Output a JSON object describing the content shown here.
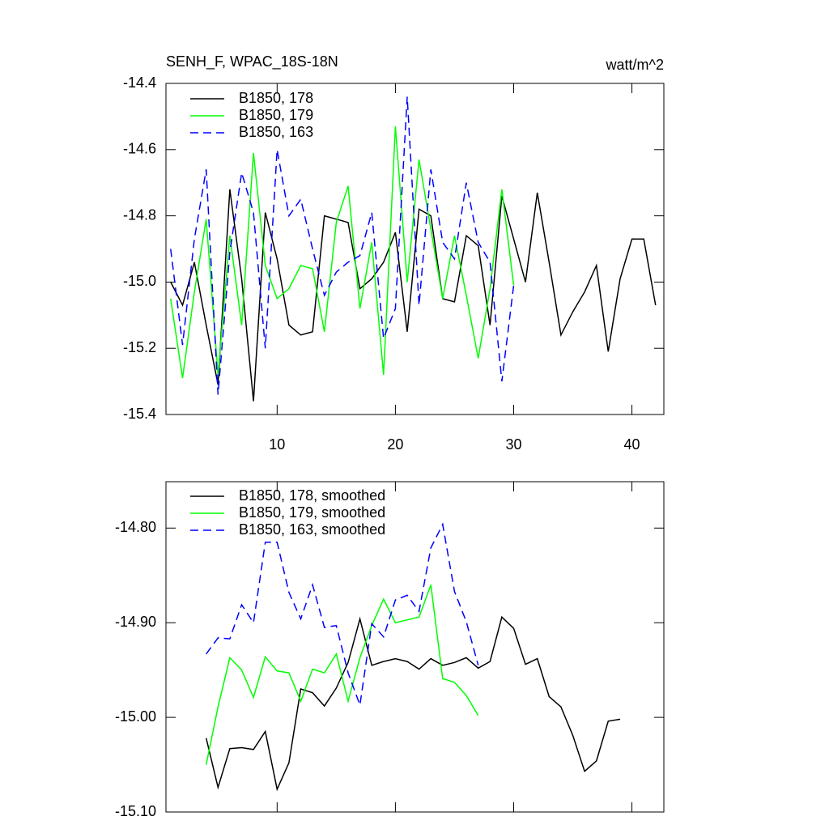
{
  "chart_data": [
    {
      "type": "line",
      "title": "SENH_F, WPAC_18S-18N",
      "units": "watt/m^2",
      "xlim": [
        0.6,
        42.7
      ],
      "xticks": [
        10,
        20,
        30,
        40
      ],
      "xtick_labels": true,
      "ylim": [
        -15.4,
        -14.4
      ],
      "yticks": [
        {
          "value": -14.4,
          "label": "-14.4"
        },
        {
          "value": -14.6,
          "label": "-14.6"
        },
        {
          "value": -14.8,
          "label": "-14.8"
        },
        {
          "value": -15.0,
          "label": "-15.0"
        },
        {
          "value": -15.2,
          "label": "-15.2"
        },
        {
          "value": -15.4,
          "label": "-15.4"
        }
      ],
      "series": [
        {
          "name": "B1850, 178",
          "color": "#000000",
          "dash": false,
          "x": [
            1,
            2,
            3,
            4,
            5,
            6,
            7,
            8,
            9,
            10,
            11,
            12,
            13,
            14,
            15,
            16,
            17,
            18,
            19,
            20,
            21,
            22,
            23,
            24,
            25,
            26,
            27,
            28,
            29,
            30,
            31,
            32,
            33,
            34,
            35,
            36,
            37,
            38,
            39,
            40,
            41,
            42
          ],
          "values": [
            -15.0,
            -15.07,
            -14.94,
            -15.13,
            -15.31,
            -14.72,
            -14.99,
            -15.36,
            -14.79,
            -14.93,
            -15.13,
            -15.16,
            -15.15,
            -14.8,
            -14.81,
            -14.82,
            -15.02,
            -14.99,
            -14.94,
            -14.85,
            -15.15,
            -14.78,
            -14.8,
            -15.05,
            -15.06,
            -14.86,
            -14.89,
            -15.13,
            -14.74,
            -14.87,
            -15.0,
            -14.73,
            -14.94,
            -15.16,
            -15.09,
            -15.03,
            -14.95,
            -15.21,
            -14.99,
            -14.87,
            -14.87,
            -15.07
          ]
        },
        {
          "name": "B1850, 179",
          "color": "#00ff00",
          "dash": false,
          "x": [
            1,
            2,
            3,
            4,
            5,
            6,
            7,
            8,
            9,
            10,
            11,
            12,
            13,
            14,
            15,
            16,
            17,
            18,
            19,
            20,
            21,
            22,
            23,
            24,
            25,
            26,
            27,
            28,
            29,
            30
          ],
          "values": [
            -15.05,
            -15.29,
            -15.03,
            -14.81,
            -15.28,
            -14.86,
            -15.13,
            -14.61,
            -14.95,
            -15.05,
            -15.02,
            -14.95,
            -14.96,
            -15.15,
            -14.82,
            -14.71,
            -15.08,
            -14.88,
            -15.28,
            -14.53,
            -15.0,
            -14.63,
            -14.84,
            -15.05,
            -14.86,
            -15.04,
            -15.23,
            -15.02,
            -14.72,
            -15.01
          ]
        },
        {
          "name": "B1850, 163",
          "color": "#0000ff",
          "dash": true,
          "x": [
            1,
            2,
            3,
            4,
            5,
            6,
            7,
            8,
            9,
            10,
            11,
            12,
            13,
            14,
            15,
            16,
            17,
            18,
            19,
            20,
            21,
            22,
            23,
            24,
            25,
            26,
            27,
            28,
            29,
            30
          ],
          "values": [
            -14.9,
            -15.19,
            -14.87,
            -14.66,
            -15.34,
            -14.91,
            -14.67,
            -14.79,
            -15.2,
            -14.6,
            -14.8,
            -14.75,
            -14.9,
            -15.04,
            -14.97,
            -14.94,
            -14.92,
            -14.79,
            -15.17,
            -15.08,
            -14.44,
            -15.07,
            -14.66,
            -14.88,
            -14.93,
            -14.7,
            -14.88,
            -14.94,
            -15.3,
            -15.01
          ]
        }
      ]
    },
    {
      "type": "line",
      "xlim": [
        0.6,
        42.7
      ],
      "xticks": [
        10,
        20,
        30,
        40
      ],
      "xtick_labels": false,
      "ylim": [
        -15.1,
        -14.751
      ],
      "yticks": [
        {
          "value": -14.8,
          "label": "-14.80"
        },
        {
          "value": -14.9,
          "label": "-14.90"
        },
        {
          "value": -15.0,
          "label": "-15.00"
        },
        {
          "value": -15.1,
          "label": "-15.10"
        }
      ],
      "series": [
        {
          "name": "B1850, 178, smoothed",
          "color": "#000000",
          "dash": false,
          "x": [
            4,
            5,
            6,
            7,
            8,
            9,
            10,
            11,
            12,
            13,
            14,
            15,
            16,
            17,
            18,
            19,
            20,
            21,
            22,
            23,
            24,
            25,
            26,
            27,
            28,
            29,
            30,
            31,
            32,
            33,
            34,
            35,
            36,
            37,
            38,
            39
          ],
          "values": [
            -15.022,
            -15.074,
            -15.033,
            -15.032,
            -15.034,
            -15.015,
            -15.076,
            -15.048,
            -14.97,
            -14.974,
            -14.988,
            -14.969,
            -14.942,
            -14.896,
            -14.945,
            -14.941,
            -14.938,
            -14.941,
            -14.949,
            -14.938,
            -14.945,
            -14.942,
            -14.937,
            -14.948,
            -14.941,
            -14.894,
            -14.906,
            -14.944,
            -14.938,
            -14.978,
            -14.989,
            -15.019,
            -15.057,
            -15.046,
            -15.004,
            -15.002
          ]
        },
        {
          "name": "B1850, 179, smoothed",
          "color": "#00ff00",
          "dash": false,
          "x": [
            4,
            5,
            6,
            7,
            8,
            9,
            10,
            11,
            12,
            13,
            14,
            15,
            16,
            17,
            18,
            19,
            20,
            21,
            22,
            23,
            24,
            25,
            26,
            27
          ],
          "values": [
            -15.05,
            -14.989,
            -14.937,
            -14.95,
            -14.979,
            -14.936,
            -14.951,
            -14.953,
            -14.983,
            -14.949,
            -14.953,
            -14.933,
            -14.983,
            -14.937,
            -14.903,
            -14.875,
            -14.9,
            -14.897,
            -14.894,
            -14.86,
            -14.959,
            -14.963,
            -14.977,
            -14.998
          ]
        },
        {
          "name": "B1850, 163, smoothed",
          "color": "#0000ff",
          "dash": true,
          "x": [
            4,
            5,
            6,
            7,
            8,
            9,
            10,
            11,
            12,
            13,
            14,
            15,
            16,
            17,
            18,
            19,
            20,
            21,
            22,
            23,
            24,
            25,
            26,
            27
          ],
          "values": [
            -14.933,
            -14.916,
            -14.917,
            -14.881,
            -14.9,
            -14.815,
            -14.815,
            -14.868,
            -14.896,
            -14.86,
            -14.905,
            -14.903,
            -14.953,
            -14.987,
            -14.901,
            -14.915,
            -14.876,
            -14.871,
            -14.888,
            -14.821,
            -14.796,
            -14.867,
            -14.899,
            -14.945
          ]
        }
      ]
    }
  ]
}
